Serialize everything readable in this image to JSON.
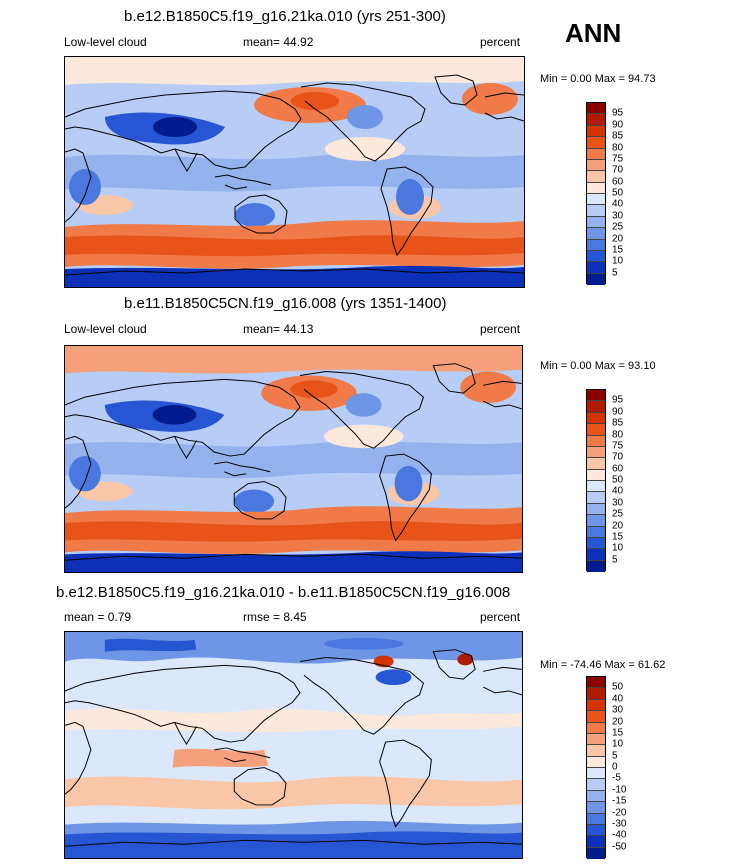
{
  "season": "ANN",
  "panels": [
    {
      "title": "b.e12.B1850C5.f19_g16.21ka.010 (yrs 251-300)",
      "left_label": "Low-level cloud",
      "center_label": "mean=  44.92",
      "right_label": "percent",
      "minmax": "Min =   0.00 Max =  94.73",
      "colorbar_labels": [
        "95",
        "90",
        "85",
        "80",
        "75",
        "70",
        "60",
        "50",
        "40",
        "30",
        "25",
        "20",
        "15",
        "10",
        "5"
      ],
      "variant": "abs1"
    },
    {
      "title": "b.e11.B1850C5CN.f19_g16.008 (yrs 1351-1400)",
      "left_label": "Low-level cloud",
      "center_label": "mean=  44.13",
      "right_label": "percent",
      "minmax": "Min =   0.00 Max =  93.10",
      "colorbar_labels": [
        "95",
        "90",
        "85",
        "80",
        "75",
        "70",
        "60",
        "50",
        "40",
        "30",
        "25",
        "20",
        "15",
        "10",
        "5"
      ],
      "variant": "abs2"
    },
    {
      "title": "b.e12.B1850C5.f19_g16.21ka.010 - b.e11.B1850C5CN.f19_g16.008",
      "left_label": "mean =   0.79",
      "center_label": "rmse =   8.45",
      "right_label": "percent",
      "minmax": "Min = -74.46 Max =  61.62",
      "colorbar_labels": [
        "50",
        "40",
        "30",
        "20",
        "15",
        "10",
        "5",
        "0",
        "-5",
        "-10",
        "-15",
        "-20",
        "-30",
        "-40",
        "-50"
      ],
      "variant": "diff"
    }
  ],
  "colorbar_colors": [
    "#8c0000",
    "#b01a00",
    "#d33400",
    "#e8531a",
    "#f07a48",
    "#f5a07a",
    "#f9c7a8",
    "#fde9dc",
    "#dbe7fb",
    "#b7cdf5",
    "#93b2ee",
    "#6e95e6",
    "#4a78df",
    "#2656d3",
    "#0c31b8",
    "#001b8c"
  ]
}
